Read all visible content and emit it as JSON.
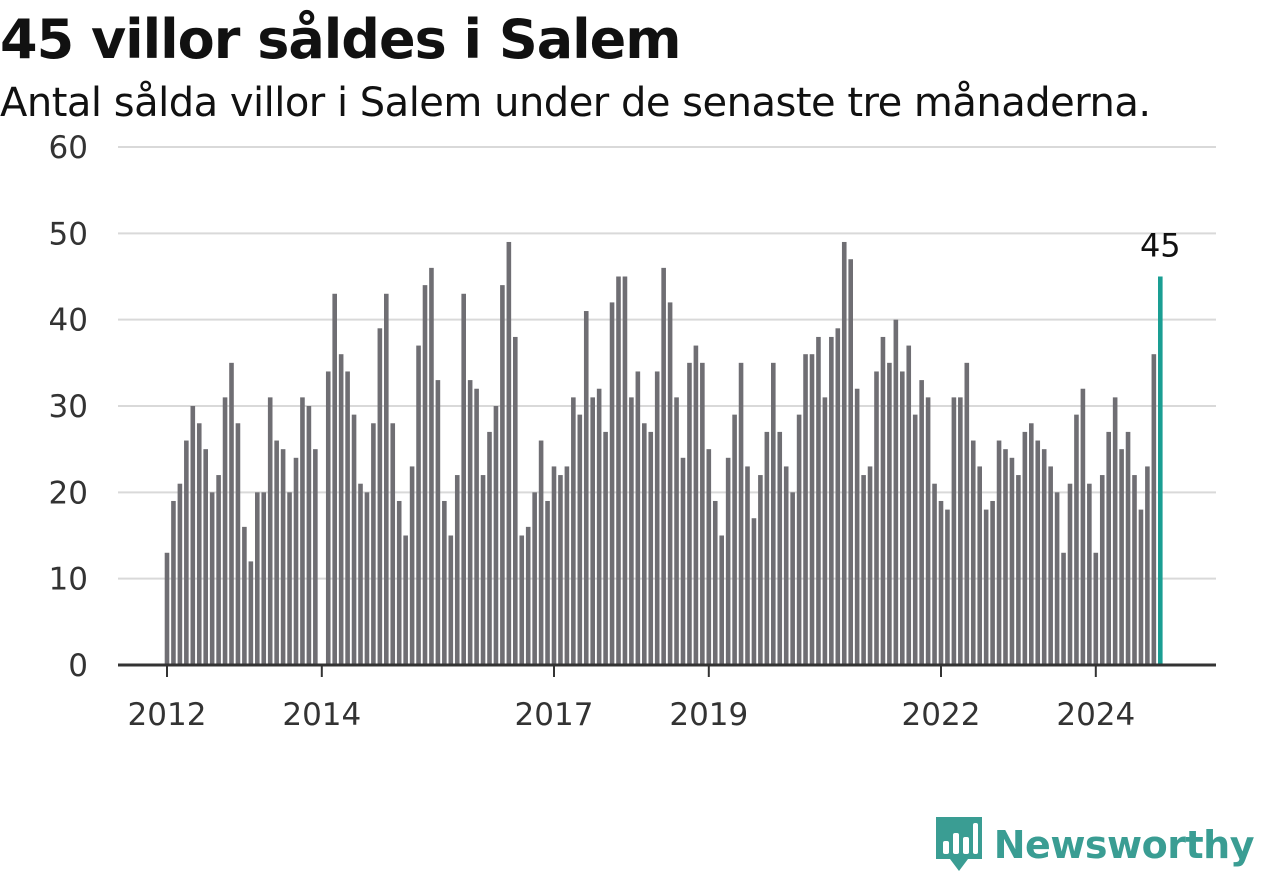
{
  "title": "45 villor såldes i Salem",
  "subtitle": "Antal sålda villor i Salem under de senaste tre månaderna.",
  "brand": {
    "name": "Newsworthy",
    "color": "#3a9d93"
  },
  "colors": {
    "bar": "#6f6e73",
    "highlight": "#1a9e93",
    "grid": "#d9d9d9",
    "axis": "#333333"
  },
  "chart_data": {
    "type": "bar",
    "start": "2012-01",
    "ylim": [
      0,
      60
    ],
    "yticks": [
      0,
      10,
      20,
      30,
      40,
      50,
      60
    ],
    "xticks": [
      "2012",
      "2014",
      "2017",
      "2019",
      "2022",
      "2024"
    ],
    "highlight_label": "45",
    "values": [
      13,
      19,
      21,
      26,
      30,
      28,
      25,
      20,
      22,
      31,
      35,
      28,
      16,
      12,
      20,
      20,
      31,
      26,
      25,
      20,
      24,
      31,
      30,
      25,
      0,
      34,
      43,
      36,
      34,
      29,
      21,
      20,
      28,
      39,
      43,
      28,
      19,
      15,
      23,
      37,
      44,
      46,
      33,
      19,
      15,
      22,
      43,
      33,
      32,
      22,
      27,
      30,
      44,
      49,
      38,
      15,
      16,
      20,
      26,
      19,
      23,
      22,
      23,
      31,
      29,
      41,
      31,
      32,
      27,
      42,
      45,
      45,
      31,
      34,
      28,
      27,
      34,
      46,
      42,
      31,
      24,
      35,
      37,
      35,
      25,
      19,
      15,
      24,
      29,
      35,
      23,
      17,
      22,
      27,
      35,
      27,
      23,
      20,
      29,
      36,
      36,
      38,
      31,
      38,
      39,
      49,
      47,
      32,
      22,
      23,
      34,
      38,
      35,
      40,
      34,
      37,
      29,
      33,
      31,
      21,
      19,
      18,
      31,
      31,
      35,
      26,
      23,
      18,
      19,
      26,
      25,
      24,
      22,
      27,
      28,
      26,
      25,
      23,
      20,
      13,
      21,
      29,
      32,
      21,
      13,
      22,
      27,
      31,
      25,
      27,
      22,
      18,
      23,
      36,
      45
    ]
  }
}
